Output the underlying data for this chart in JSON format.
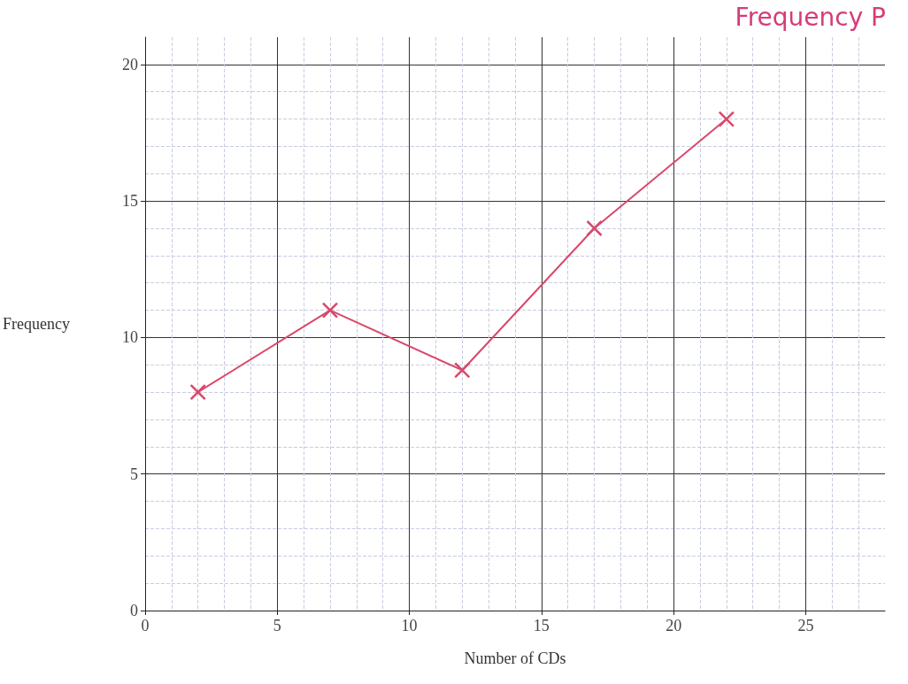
{
  "chart_data": {
    "type": "line",
    "title": "Frequency P",
    "xlabel": "Number of CDs",
    "ylabel": "Frequency",
    "x": [
      2,
      7,
      12,
      17,
      22
    ],
    "series": [
      {
        "color": "#d9486a",
        "values": [
          8,
          11,
          8.8,
          14,
          18
        ]
      }
    ],
    "xlim": [
      0,
      28
    ],
    "xticks": [
      0,
      5,
      10,
      15,
      20,
      25
    ],
    "ylim": [
      0,
      21
    ],
    "yticks": [
      0,
      5,
      10,
      15,
      20
    ],
    "grid": true,
    "marker": "cross",
    "line_style": "solid"
  }
}
